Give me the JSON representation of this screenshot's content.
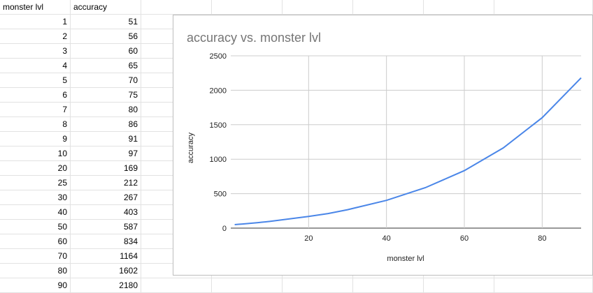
{
  "sheet": {
    "headers": [
      "monster lvl",
      "accuracy"
    ],
    "rows": [
      [
        1,
        51
      ],
      [
        2,
        56
      ],
      [
        3,
        60
      ],
      [
        4,
        65
      ],
      [
        5,
        70
      ],
      [
        6,
        75
      ],
      [
        7,
        80
      ],
      [
        8,
        86
      ],
      [
        9,
        91
      ],
      [
        10,
        97
      ],
      [
        20,
        169
      ],
      [
        25,
        212
      ],
      [
        30,
        267
      ],
      [
        40,
        403
      ],
      [
        50,
        587
      ],
      [
        60,
        834
      ],
      [
        70,
        1164
      ],
      [
        80,
        1602
      ],
      [
        90,
        2180
      ]
    ]
  },
  "chart_data": {
    "type": "line",
    "title": "accuracy vs. monster lvl",
    "xlabel": "monster lvl",
    "ylabel": "accuracy",
    "xlim": [
      0,
      90
    ],
    "ylim": [
      0,
      2500
    ],
    "xticks": [
      20,
      40,
      60,
      80
    ],
    "yticks": [
      0,
      500,
      1000,
      1500,
      2000,
      2500
    ],
    "grid": true,
    "line_color": "#4a86e8",
    "series": [
      {
        "x": [
          1,
          2,
          3,
          4,
          5,
          6,
          7,
          8,
          9,
          10,
          20,
          25,
          30,
          40,
          50,
          60,
          70,
          80,
          90
        ],
        "values": [
          51,
          56,
          60,
          65,
          70,
          75,
          80,
          86,
          91,
          97,
          169,
          212,
          267,
          403,
          587,
          834,
          1164,
          1602,
          2180
        ]
      }
    ]
  }
}
